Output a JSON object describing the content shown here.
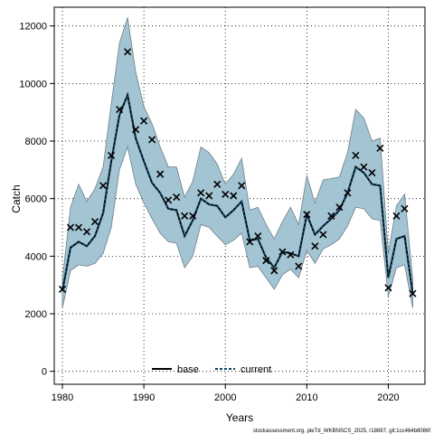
{
  "chart_data": {
    "type": "line",
    "xlabel": "Years",
    "ylabel": "Catch",
    "xlim": [
      1979,
      2024.5
    ],
    "ylim": [
      -450,
      12650
    ],
    "xticks": [
      1980,
      1990,
      2000,
      2010,
      2020
    ],
    "yticks": [
      0,
      2000,
      4000,
      6000,
      8000,
      10000,
      12000
    ],
    "grid": true,
    "legend_position": "bottom-center",
    "colors": {
      "band": "#a3c4d3",
      "band_edge": "#6f7f88",
      "line": "#000000",
      "current": "#0d3f5c"
    },
    "x": [
      1980,
      1981,
      1982,
      1983,
      1984,
      1985,
      1986,
      1987,
      1988,
      1989,
      1990,
      1991,
      1992,
      1993,
      1994,
      1995,
      1996,
      1997,
      1998,
      1999,
      2000,
      2001,
      2002,
      2003,
      2004,
      2005,
      2006,
      2007,
      2008,
      2009,
      2010,
      2011,
      2012,
      2013,
      2014,
      2015,
      2016,
      2017,
      2018,
      2019,
      2020,
      2021,
      2022,
      2023
    ],
    "observed": [
      2850,
      5000,
      5000,
      4850,
      5200,
      6450,
      7500,
      9100,
      11100,
      8400,
      8700,
      8050,
      6850,
      5950,
      6050,
      5400,
      5400,
      6200,
      6100,
      6500,
      6150,
      6100,
      6450,
      4500,
      4700,
      3850,
      3500,
      4150,
      4050,
      3650,
      5450,
      4350,
      4750,
      5400,
      5700,
      6200,
      7500,
      7100,
      6900,
      7750,
      2900,
      5400,
      5650,
      2700
    ],
    "series": [
      {
        "name": "base",
        "values": [
          2800,
          4300,
          4500,
          4350,
          4700,
          5500,
          7300,
          8900,
          9600,
          8100,
          7300,
          6550,
          6200,
          5650,
          5600,
          4700,
          5250,
          6000,
          5800,
          5750,
          5350,
          5600,
          5900,
          4550,
          4600,
          3950,
          3600,
          4150,
          4100,
          4000,
          5450,
          4750,
          5050,
          5300,
          5600,
          6200,
          7100,
          6900,
          6500,
          6450,
          3250,
          4600,
          4700,
          2700
        ]
      },
      {
        "name": "current",
        "values": [
          2800,
          4300,
          4500,
          4350,
          4700,
          5500,
          7300,
          8900,
          9600,
          8100,
          7300,
          6550,
          6200,
          5650,
          5600,
          4700,
          5250,
          6000,
          5800,
          5750,
          5350,
          5600,
          5900,
          4550,
          4600,
          3950,
          3600,
          4150,
          4100,
          4000,
          5450,
          4750,
          5050,
          5300,
          5600,
          6200,
          7100,
          6900,
          6500,
          6450,
          3250,
          4600,
          4700,
          2700
        ]
      }
    ],
    "band_upper": [
      3200,
      5700,
      6500,
      5900,
      6350,
      7100,
      9300,
      11400,
      12300,
      10400,
      9200,
      8600,
      7800,
      7100,
      7100,
      6050,
      6600,
      7800,
      7600,
      7200,
      6500,
      6850,
      7400,
      5600,
      5700,
      5100,
      4600,
      5200,
      5700,
      5100,
      6800,
      5850,
      6650,
      6700,
      6750,
      7600,
      9100,
      8800,
      8000,
      8100,
      4100,
      5750,
      6150,
      3200
    ],
    "band_lower": [
      2200,
      3500,
      3700,
      3650,
      3750,
      4100,
      5000,
      7000,
      7800,
      6500,
      5850,
      5300,
      4800,
      4500,
      4450,
      3600,
      4000,
      5100,
      5000,
      4700,
      4400,
      4550,
      4800,
      3600,
      3650,
      3250,
      2850,
      3350,
      3550,
      3250,
      4200,
      3750,
      4250,
      4400,
      4600,
      5050,
      5700,
      5650,
      5300,
      5250,
      2600,
      3600,
      3700,
      2200
    ],
    "legend": [
      "base",
      "current"
    ],
    "footnote": "stockassessment.org, pleTd_WKBNSCS_2025, r18697, git:1cc464b8086f"
  }
}
